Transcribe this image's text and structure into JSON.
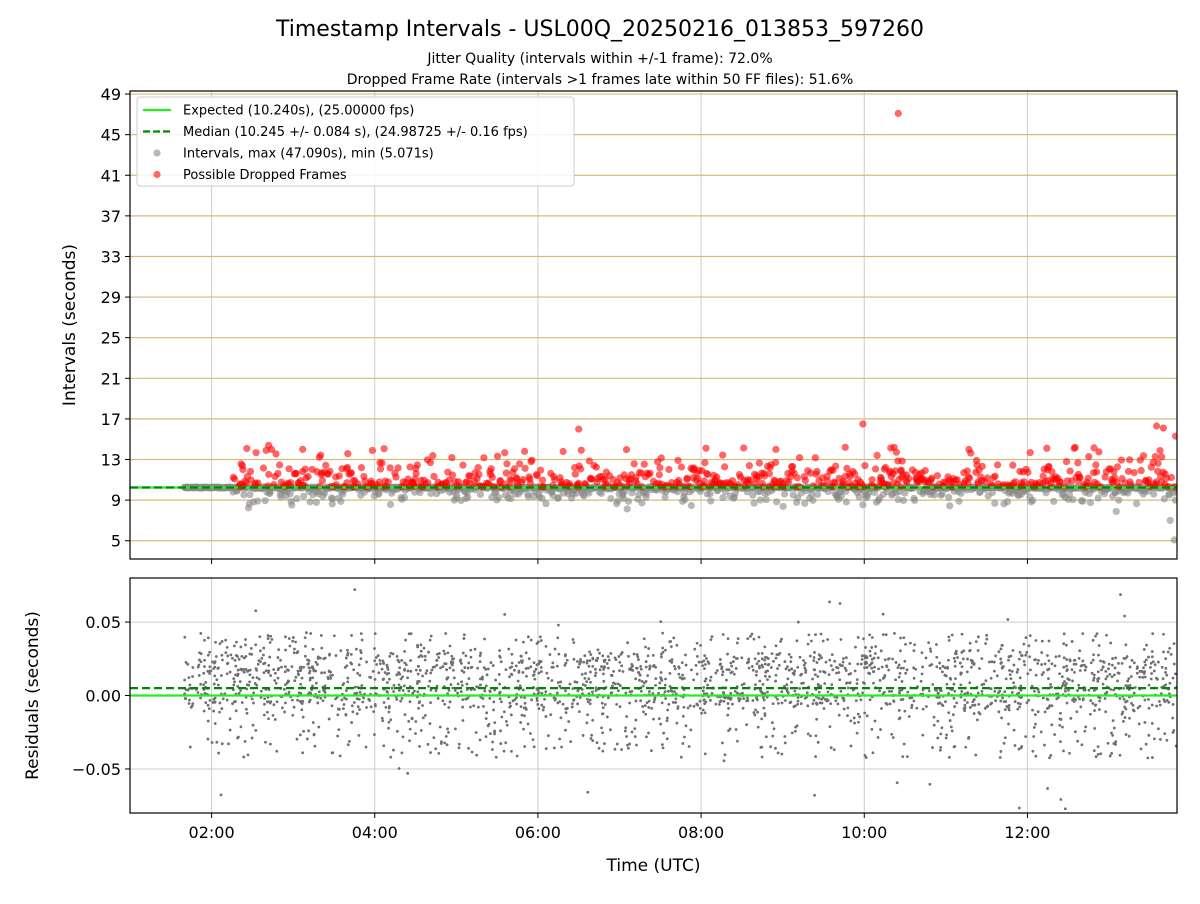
{
  "title": "Timestamp Intervals - USL00Q_20250216_013853_597260",
  "subtitle_1": "Jitter Quality (intervals within +/-1 frame): 72.0%",
  "subtitle_2": "Dropped Frame Rate (intervals >1 frames late within 50 FF files): 51.6%",
  "colors": {
    "expected": "#22ee22",
    "median": "#008800",
    "intervals": "#888888",
    "dropped": "#ff0000",
    "residuals": "#707070",
    "hgrid_top": "#d2bd79",
    "grid": "#cccccc"
  },
  "chart_data": [
    {
      "type": "scatter",
      "panel": "intervals",
      "ylabel": "Intervals (seconds)",
      "xlim": [
        "01:00",
        "13:50"
      ],
      "ylim": [
        3.2,
        49.3
      ],
      "y_ticks": [
        5,
        9,
        13,
        17,
        21,
        25,
        29,
        33,
        37,
        41,
        45,
        49
      ],
      "x_ticks": [
        "02:00",
        "04:00",
        "06:00",
        "08:00",
        "10:00",
        "12:00"
      ],
      "grid": "on",
      "legend_placement": "top-left",
      "legend": [
        "Expected (10.240s), (25.00000 fps)",
        "Median (10.245 +/- 0.084 s), (24.98725 +/- 0.16 fps)",
        "Intervals, max (47.090s), min (5.071s)",
        "Possible Dropped Frames"
      ],
      "expected_line": 10.24,
      "median_line": 10.245,
      "time_range": [
        "01:40",
        "13:50"
      ],
      "intervals_summary": {
        "max": 47.09,
        "min": 5.071
      },
      "dropped_threshold": 10.3,
      "notable_points": [
        {
          "x": "10:25",
          "y": 47.09
        },
        {
          "x": "13:48",
          "y": 5.07
        },
        {
          "x": "13:45",
          "y": 7.0
        },
        {
          "x": "06:30",
          "y": 16.0
        },
        {
          "x": "09:59",
          "y": 16.5
        },
        {
          "x": "13:35",
          "y": 16.3
        },
        {
          "x": "13:40",
          "y": 16.1
        },
        {
          "x": "13:49",
          "y": 15.3
        },
        {
          "x": "02:42",
          "y": 14.4
        },
        {
          "x": "10:22",
          "y": 14.2
        },
        {
          "x": "03:07",
          "y": 14.0
        },
        {
          "x": "09:46",
          "y": 14.2
        },
        {
          "x": "08:55",
          "y": 14.0
        }
      ]
    },
    {
      "type": "scatter",
      "panel": "residuals",
      "ylabel": "Residuals (seconds)",
      "xlabel": "Time (UTC)",
      "xlim": [
        "01:00",
        "13:50"
      ],
      "ylim": [
        -0.08,
        0.08
      ],
      "y_ticks": [
        0.05,
        0.0,
        -0.05
      ],
      "y_tick_labels": [
        "0.05",
        "0.00",
        "−0.05"
      ],
      "x_ticks": [
        "02:00",
        "04:00",
        "06:00",
        "08:00",
        "10:00",
        "12:00"
      ],
      "grid": "on",
      "expected_line": 0.0,
      "median_line": 0.005,
      "residual_range": [
        -0.078,
        0.078
      ]
    }
  ]
}
